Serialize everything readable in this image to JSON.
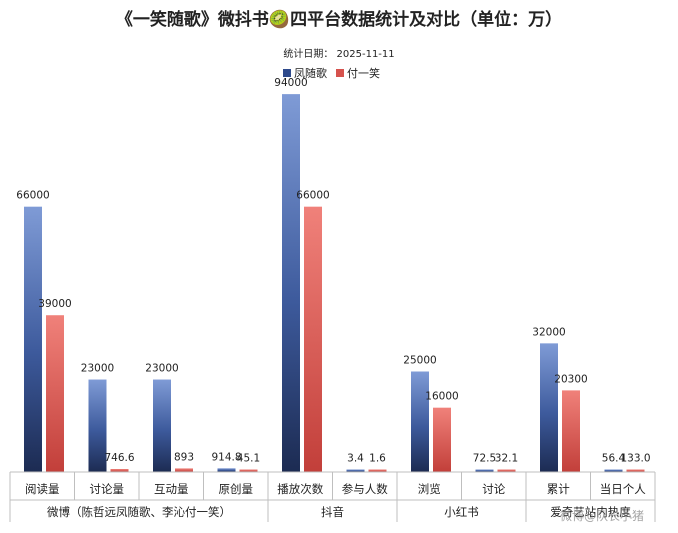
{
  "chart_data": {
    "type": "bar",
    "title": "《一笑随歌》微抖书🥝四平台数据统计及对比（单位：万）",
    "subtitle": "统计日期： 2025-11-11",
    "legend_position": "top-center",
    "grid": false,
    "ylim": [
      0,
      100000
    ],
    "series": [
      {
        "name": "凤随歌",
        "color": "#3a5fa6",
        "values": [
          66000,
          23000,
          23000,
          914.8,
          94000,
          3.4,
          25000,
          72.5,
          32000,
          56.4
        ],
        "labels": [
          "66000",
          "23000",
          "23000",
          "914.8",
          "94000",
          "3.4",
          "25000",
          "72.5",
          "32000",
          "56.4"
        ]
      },
      {
        "name": "付一笑",
        "color": "#d6524d",
        "values": [
          39000,
          746.6,
          893,
          45.1,
          66000,
          1.6,
          16000,
          32.1,
          20300,
          133.0
        ],
        "labels": [
          "39000",
          "746.6",
          "893",
          "45.1",
          "66000",
          "1.6",
          "16000",
          "32.1",
          "20300",
          "133.0"
        ]
      }
    ],
    "categories": [
      "阅读量",
      "讨论量",
      "互动量",
      "原创量",
      "播放次数",
      "参与人数",
      "浏览",
      "讨论",
      "累计",
      "当日个人"
    ],
    "groups": [
      {
        "label": "微博（陈哲远凤随歌、李沁付一笑）",
        "span": 4
      },
      {
        "label": "抖音",
        "span": 2
      },
      {
        "label": "小红书",
        "span": 2
      },
      {
        "label": "爱奇艺站内热度",
        "span": 2
      }
    ]
  },
  "watermark": "微博@队长小猪"
}
